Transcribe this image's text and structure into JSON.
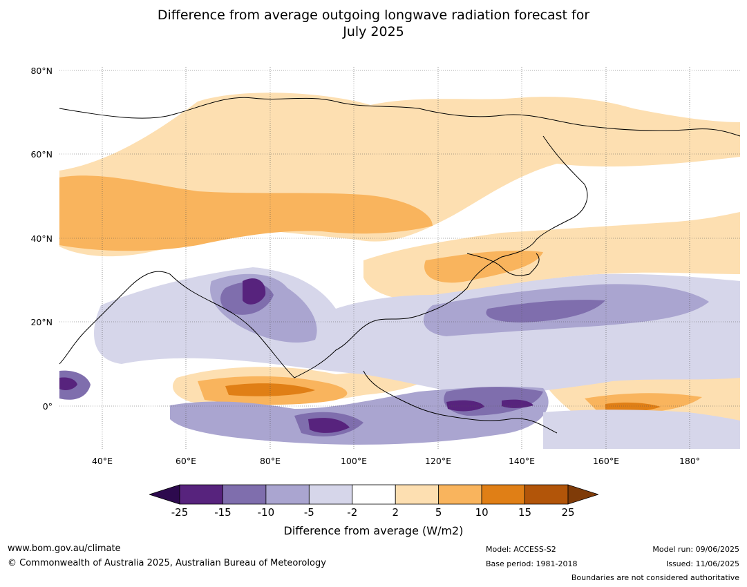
{
  "title_line1": "Difference from average outgoing longwave radiation forecast for",
  "title_line2": "July 2025",
  "latitudes": [
    "80°N",
    "60°N",
    "40°N",
    "20°N",
    "0°"
  ],
  "longitudes": [
    "40°E",
    "60°E",
    "80°E",
    "100°E",
    "120°E",
    "140°E",
    "160°E",
    "180°"
  ],
  "colorbar": {
    "ticks": [
      "-25",
      "-15",
      "-10",
      "-5",
      "-2",
      "2",
      "5",
      "10",
      "15",
      "25"
    ],
    "colors": [
      "#2d0a4e",
      "#57237d",
      "#7f6ead",
      "#aaa5d0",
      "#d6d6ea",
      "#ffffff",
      "#fddfb1",
      "#f9b45d",
      "#e07f16",
      "#b25509",
      "#7f3b08"
    ],
    "label": "Difference from average (W/m2)"
  },
  "footer": {
    "website": "www.bom.gov.au/climate",
    "copyright": "© Commonwealth of Australia 2025, Australian Bureau of Meteorology",
    "model": "Model: ACCESS-S2",
    "base_period": "Base period: 1981-2018",
    "model_run": "Model run: 09/06/2025",
    "issued": "Issued: 11/06/2025",
    "disclaimer": "Boundaries are not considered authoritative"
  }
}
